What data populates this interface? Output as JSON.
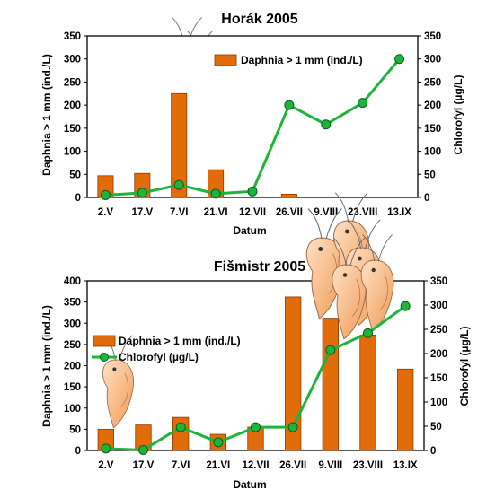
{
  "charts": [
    {
      "title": "Horák 2005",
      "type": "bar+line",
      "xlabel": "Datum",
      "ylabel_left": "Daphnia > 1 mm (ind./L)",
      "ylabel_right": "Chlorofyl (µg/L)",
      "categories": [
        "2.V",
        "17.V",
        "7.VI",
        "21.VI",
        "12.VII",
        "26.VII",
        "9.VIII",
        "23.VIII",
        "13.IX"
      ],
      "left_ylim": [
        0,
        350
      ],
      "left_ticks": [
        "0",
        "50",
        "100",
        "150",
        "200",
        "250",
        "300",
        "350"
      ],
      "right_ylim": [
        0,
        350
      ],
      "right_ticks": [
        "0",
        "50",
        "100",
        "150",
        "200",
        "250",
        "300",
        "350"
      ],
      "legend": [
        {
          "label": "Daphnia > 1 mm (ind./L)",
          "kind": "bar"
        }
      ],
      "series": [
        {
          "name": "Daphnia > 1 mm (ind./L)",
          "kind": "bar",
          "axis": "left",
          "values": [
            47,
            52,
            225,
            60,
            0,
            7,
            0,
            0,
            0
          ],
          "color": "#E26B0A"
        },
        {
          "name": "Chlorofyl (µg/L)",
          "kind": "line",
          "axis": "right",
          "values": [
            5,
            10,
            27,
            8,
            13,
            200,
            158,
            205,
            300
          ],
          "color": "#1EB33A"
        }
      ]
    },
    {
      "title": "Fišmistr 2005",
      "type": "bar+line",
      "xlabel": "Datum",
      "ylabel_left": "Daphnia > 1 mm (ind./L)",
      "ylabel_right": "Chlorofyl (µg/L)",
      "categories": [
        "2.V",
        "17.V",
        "7.VI",
        "21.VI",
        "12.VII",
        "26.VII",
        "9.VIII",
        "23.VIII",
        "13.IX"
      ],
      "left_ylim": [
        0,
        400
      ],
      "left_ticks": [
        "0",
        "50",
        "100",
        "150",
        "200",
        "250",
        "300",
        "350",
        "400"
      ],
      "right_ylim": [
        0,
        350
      ],
      "right_ticks": [
        "0",
        "50",
        "100",
        "150",
        "200",
        "250",
        "300",
        "350"
      ],
      "legend": [
        {
          "label": "Daphnia > 1 mm (ind./L)",
          "kind": "bar"
        },
        {
          "label": "Chlorofyl (µg/L)",
          "kind": "line"
        }
      ],
      "series": [
        {
          "name": "Daphnia > 1 mm (ind./L)",
          "kind": "bar",
          "axis": "left",
          "values": [
            50,
            60,
            78,
            38,
            55,
            362,
            312,
            272,
            192
          ],
          "color": "#E26B0A"
        },
        {
          "name": "Chlorofyl (µg/L)",
          "kind": "line",
          "axis": "right",
          "values": [
            4,
            1,
            48,
            17,
            48,
            48,
            207,
            242,
            298
          ],
          "color": "#1EB33A"
        }
      ]
    }
  ],
  "colors": {
    "bar_fill": "#E26B0A",
    "bar_stroke": "#8a3b00",
    "line": "#1EB33A",
    "marker_stroke": "#0b5d1a"
  },
  "illustrations": [
    "daphnia-icon",
    "rotifer-icon"
  ]
}
